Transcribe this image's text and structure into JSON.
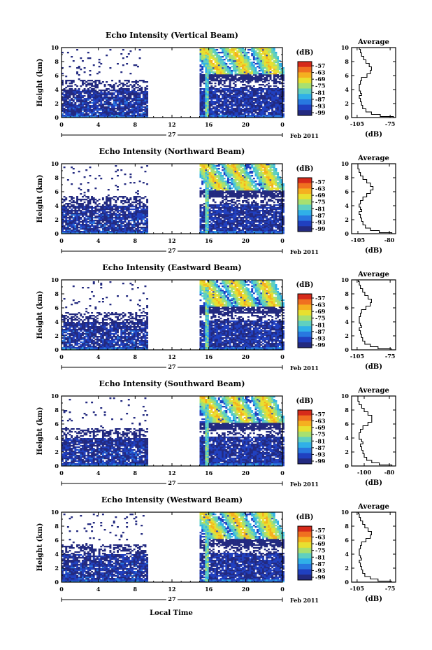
{
  "figure": {
    "xlabel": "Local Time",
    "date_label": "Feb 2011",
    "day_label": "27",
    "colorbar_unit": "(dB)",
    "colorbar_ticks": [
      "-57",
      "-63",
      "-69",
      "-75",
      "-81",
      "-87",
      "-93",
      "-99"
    ],
    "colorbar_colors": [
      "#d62a1a",
      "#f07020",
      "#f5b020",
      "#e8e030",
      "#a8e070",
      "#60d0c0",
      "#30b0e8",
      "#2878e0",
      "#2040c0",
      "#232a80"
    ],
    "white_color": "#ffffff"
  },
  "chart_data": [
    {
      "type": "heatmap",
      "title": "Echo Intensity (Vertical Beam)",
      "ylabel": "Height (km)",
      "x_ticks": [
        "0",
        "4",
        "8",
        "12",
        "16",
        "20",
        "0"
      ],
      "xlim": [
        0,
        24
      ],
      "y_ticks": [
        "0",
        "2",
        "4",
        "6",
        "8",
        "10"
      ],
      "ylim": [
        0,
        10
      ],
      "data_gap_hours": [
        9.3,
        15.0
      ],
      "profile": {
        "title": "Average",
        "xlabel": "(dB)",
        "x_ticks": [
          "-105",
          "-75"
        ],
        "x_tick_values": [
          -105,
          -75
        ],
        "xlim": [
          -110,
          -70
        ],
        "heights_km": [
          0,
          0.3,
          0.6,
          1.0,
          1.5,
          2.0,
          2.5,
          3.0,
          3.3,
          3.6,
          4.0,
          4.5,
          5.0,
          5.5,
          6.0,
          6.5,
          7.0,
          7.5,
          8.0,
          8.5,
          9.0,
          9.5,
          10.0
        ],
        "values_db": [
          -72,
          -84,
          -92,
          -97,
          -100,
          -101,
          -102,
          -103,
          -101,
          -102,
          -103,
          -103,
          -102,
          -101,
          -96,
          -93,
          -92,
          -94,
          -97,
          -99,
          -101,
          -102,
          -103
        ]
      }
    },
    {
      "type": "heatmap",
      "title": "Echo Intensity (Northward Beam)",
      "ylabel": "Height (km)",
      "x_ticks": [
        "0",
        "4",
        "8",
        "12",
        "16",
        "20",
        "0"
      ],
      "xlim": [
        0,
        24
      ],
      "y_ticks": [
        "0",
        "2",
        "4",
        "6",
        "8",
        "10"
      ],
      "ylim": [
        0,
        10
      ],
      "data_gap_hours": [
        9.3,
        15.0
      ],
      "profile": {
        "title": "Average",
        "xlabel": "(dB)",
        "x_ticks": [
          "-105",
          "-80"
        ],
        "x_tick_values": [
          -105,
          -80
        ],
        "xlim": [
          -110,
          -75
        ],
        "heights_km": [
          0,
          0.3,
          0.6,
          1.0,
          1.5,
          2.0,
          2.5,
          3.0,
          3.3,
          3.6,
          4.0,
          4.5,
          5.0,
          5.5,
          6.0,
          6.5,
          7.0,
          7.5,
          8.0,
          8.5,
          9.0,
          9.5,
          10.0
        ],
        "values_db": [
          -78,
          -88,
          -95,
          -99,
          -101,
          -102,
          -103,
          -104,
          -102,
          -103,
          -104,
          -103,
          -101,
          -98,
          -95,
          -93,
          -95,
          -98,
          -101,
          -103,
          -104,
          -105,
          -105
        ]
      }
    },
    {
      "type": "heatmap",
      "title": "Echo Intensity (Eastward Beam)",
      "ylabel": "Height (km)",
      "x_ticks": [
        "0",
        "4",
        "8",
        "12",
        "16",
        "20",
        "0"
      ],
      "xlim": [
        0,
        24
      ],
      "y_ticks": [
        "0",
        "2",
        "4",
        "6",
        "8",
        "10"
      ],
      "ylim": [
        0,
        10
      ],
      "data_gap_hours": [
        9.3,
        15.0
      ],
      "profile": {
        "title": "Average",
        "xlabel": "(dB)",
        "x_ticks": [
          "-105",
          "-75"
        ],
        "x_tick_values": [
          -105,
          -75
        ],
        "xlim": [
          -110,
          -70
        ],
        "heights_km": [
          0,
          0.3,
          0.6,
          1.0,
          1.5,
          2.0,
          2.5,
          3.0,
          3.3,
          3.6,
          4.0,
          4.5,
          5.0,
          5.5,
          6.0,
          6.5,
          7.0,
          7.5,
          8.0,
          8.5,
          9.0,
          9.5,
          10.0
        ],
        "values_db": [
          -74,
          -86,
          -93,
          -98,
          -100,
          -101,
          -102,
          -103,
          -101,
          -102,
          -103,
          -103,
          -102,
          -101,
          -97,
          -93,
          -92,
          -95,
          -98,
          -100,
          -102,
          -103,
          -104
        ]
      }
    },
    {
      "type": "heatmap",
      "title": "Echo Intensity (Southward Beam)",
      "ylabel": "Height (km)",
      "x_ticks": [
        "0",
        "4",
        "8",
        "12",
        "16",
        "20",
        "0"
      ],
      "xlim": [
        0,
        24
      ],
      "y_ticks": [
        "0",
        "2",
        "4",
        "6",
        "8",
        "10"
      ],
      "ylim": [
        0,
        10
      ],
      "data_gap_hours": [
        9.3,
        15.0
      ],
      "profile": {
        "title": "Average",
        "xlabel": "(dB)",
        "x_ticks": [
          "-100",
          "-80"
        ],
        "x_tick_values": [
          -100,
          -80
        ],
        "xlim": [
          -110,
          -75
        ],
        "heights_km": [
          0,
          0.3,
          0.6,
          1.0,
          1.5,
          2.0,
          2.5,
          3.0,
          3.3,
          3.6,
          4.0,
          4.5,
          5.0,
          5.5,
          6.0,
          6.5,
          7.0,
          7.5,
          8.0,
          8.5,
          9.0,
          9.5,
          10.0
        ],
        "values_db": [
          -78,
          -88,
          -94,
          -98,
          -100,
          -101,
          -102,
          -103,
          -101,
          -102,
          -104,
          -104,
          -103,
          -101,
          -97,
          -94,
          -94,
          -97,
          -100,
          -102,
          -104,
          -105,
          -105
        ]
      }
    },
    {
      "type": "heatmap",
      "title": "Echo Intensity (Westward Beam)",
      "ylabel": "Height (km)",
      "x_ticks": [
        "0",
        "4",
        "8",
        "12",
        "16",
        "20",
        "0"
      ],
      "xlim": [
        0,
        24
      ],
      "y_ticks": [
        "0",
        "2",
        "4",
        "6",
        "8",
        "10"
      ],
      "ylim": [
        0,
        10
      ],
      "data_gap_hours": [
        9.3,
        15.0
      ],
      "profile": {
        "title": "Average",
        "xlabel": "(dB)",
        "x_ticks": [
          "-105",
          "-75"
        ],
        "x_tick_values": [
          -105,
          -75
        ],
        "xlim": [
          -110,
          -70
        ],
        "heights_km": [
          0,
          0.3,
          0.6,
          1.0,
          1.5,
          2.0,
          2.5,
          3.0,
          3.3,
          3.6,
          4.0,
          4.5,
          5.0,
          5.5,
          6.0,
          6.5,
          7.0,
          7.5,
          8.0,
          8.5,
          9.0,
          9.5,
          10.0
        ],
        "values_db": [
          -74,
          -86,
          -93,
          -98,
          -100,
          -101,
          -102,
          -103,
          -101,
          -102,
          -103,
          -103,
          -102,
          -101,
          -97,
          -93,
          -92,
          -95,
          -98,
          -100,
          -102,
          -103,
          -104
        ]
      }
    }
  ]
}
